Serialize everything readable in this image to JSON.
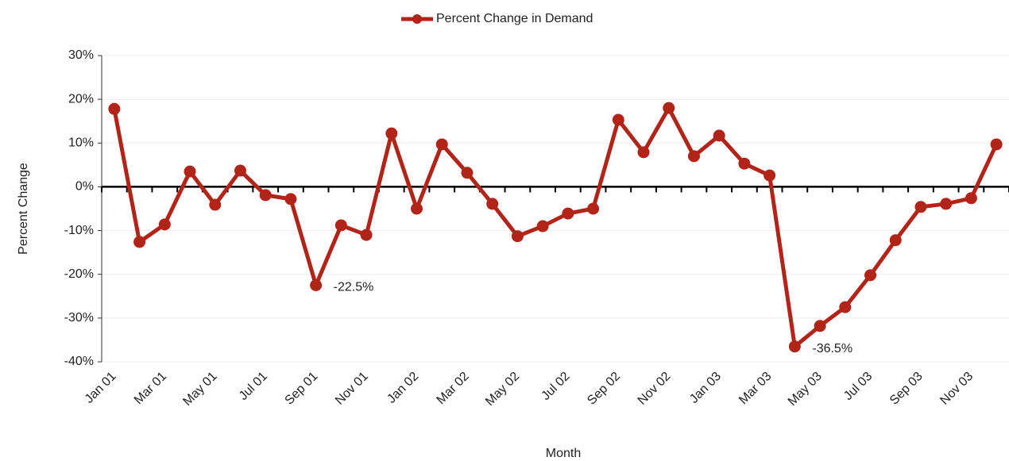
{
  "chart_data": {
    "type": "line",
    "x_label": "Month",
    "y_label": "Percent Change",
    "categories": [
      "Jan 01",
      null,
      "Mar 01",
      null,
      "May 01",
      null,
      "Jul 01",
      null,
      "Sep 01",
      null,
      "Nov 01",
      null,
      "Jan 02",
      null,
      "Mar 02",
      null,
      "May 02",
      null,
      "Jul 02",
      null,
      "Sep 02",
      null,
      "Nov 02",
      null,
      "Jan 03",
      null,
      "Mar 03",
      null,
      "May 03",
      null,
      "Jul 03",
      null,
      "Sep 03",
      null,
      "Nov 03",
      null
    ],
    "series": [
      {
        "name": "Percent Change in Demand",
        "color": "#b22418",
        "values": [
          17.8,
          -12.6,
          -8.6,
          3.5,
          -4.1,
          3.7,
          -1.9,
          -2.8,
          -22.5,
          -8.8,
          -11.0,
          12.2,
          -5.0,
          9.7,
          3.2,
          -3.9,
          -11.3,
          -9.0,
          -6.1,
          -5.0,
          15.3,
          7.9,
          18.0,
          7.0,
          11.7,
          5.3,
          2.6,
          -36.5,
          -31.8,
          -27.5,
          -20.2,
          -12.2,
          -4.6,
          -3.9,
          -2.6,
          9.7
        ],
        "value_labels": [
          null,
          null,
          null,
          null,
          null,
          null,
          null,
          null,
          "-22.5%",
          null,
          null,
          null,
          null,
          null,
          null,
          null,
          null,
          null,
          null,
          null,
          null,
          null,
          null,
          null,
          null,
          null,
          null,
          "-36.5%",
          null,
          null,
          null,
          null,
          null,
          null,
          null,
          null
        ]
      }
    ],
    "ylim": [
      -40,
      30
    ],
    "yticks": [
      {
        "value": -40,
        "label": "-40%"
      },
      {
        "value": -30,
        "label": "-30%"
      },
      {
        "value": -20,
        "label": "-20%"
      },
      {
        "value": -10,
        "label": "-10%"
      },
      {
        "value": 0,
        "label": "0%"
      },
      {
        "value": 10,
        "label": "10%"
      },
      {
        "value": 20,
        "label": "20%"
      },
      {
        "value": 30,
        "label": "30%"
      }
    ],
    "grid": true,
    "legend": "top"
  }
}
